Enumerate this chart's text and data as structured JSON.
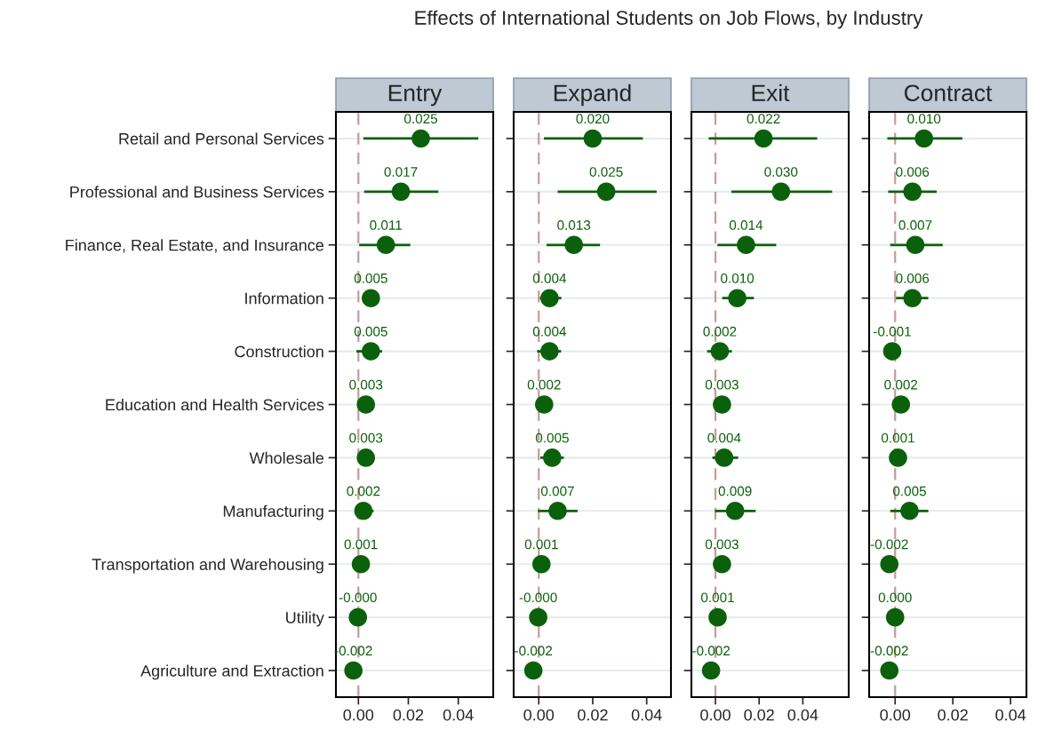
{
  "chart_data": [
    {
      "type": "scatter",
      "title": "Entry",
      "annotations": [
        "Effects of International Students on Job Flows, by Industry"
      ],
      "categories": [
        "Retail and Personal Services",
        "Professional and Business Services",
        "Finance, Real Estate, and Insurance",
        "Information",
        "Construction",
        "Education and Health Services",
        "Wholesale",
        "Manufacturing",
        "Transportation and Warehousing",
        "Utility",
        "Agriculture and Extraction"
      ],
      "series": [
        {
          "color": "#0b610b",
          "values": [
            0.025,
            0.017,
            0.011,
            0.005,
            0.005,
            0.003,
            0.003,
            0.002,
            0.001,
            -0.0002,
            -0.002
          ],
          "value_labels": [
            "0.025",
            "0.017",
            "0.011",
            "0.005",
            "0.005",
            "0.003",
            "0.003",
            "0.002",
            "0.001",
            "-0.000",
            "-0.002"
          ],
          "errors": [
            [
              0.002,
              0.048
            ],
            [
              0.0023,
              0.032
            ],
            [
              0.0003,
              0.0208
            ],
            [
              0.002,
              0.0083
            ],
            [
              -0.0008,
              0.0095
            ],
            null,
            null,
            [
              -0.0014,
              0.0061
            ],
            null,
            null,
            null
          ]
        }
      ],
      "orientation": "horizontal",
      "xlim": [
        -0.009,
        0.054
      ],
      "xticks": [
        {
          "value": 0,
          "label": "0.00"
        },
        {
          "value": 0.02,
          "label": "0.02"
        },
        {
          "value": 0.04,
          "label": "0.04"
        }
      ],
      "ref_lines": [
        {
          "axis": "x",
          "value": 0,
          "color": "#c99a9a",
          "line_style": "dashed"
        }
      ],
      "grid": "y",
      "marker": "circle",
      "legend": false
    },
    {
      "type": "scatter",
      "title": "Expand",
      "series": [
        {
          "color": "#0b610b",
          "values": [
            0.02,
            0.025,
            0.013,
            0.004,
            0.004,
            0.002,
            0.005,
            0.007,
            0.001,
            -0.0002,
            -0.002
          ],
          "value_labels": [
            "0.020",
            "0.025",
            "0.013",
            "0.004",
            "0.004",
            "0.002",
            "0.005",
            "0.007",
            "0.001",
            "-0.000",
            "-0.002"
          ],
          "errors": [
            [
              0.0019,
              0.0386
            ],
            [
              0.007,
              0.0437
            ],
            [
              0.0029,
              0.0227
            ],
            [
              0.0004,
              0.0084
            ],
            [
              -0.0006,
              0.0083
            ],
            null,
            [
              0.0006,
              0.0093
            ],
            [
              -0.0003,
              0.0144
            ],
            null,
            null,
            null
          ]
        }
      ],
      "orientation": "horizontal",
      "xlim": [
        -0.0093,
        0.049
      ],
      "xticks": [
        {
          "value": 0,
          "label": "0.00"
        },
        {
          "value": 0.02,
          "label": "0.02"
        },
        {
          "value": 0.04,
          "label": "0.04"
        }
      ],
      "ref_lines": [
        {
          "axis": "x",
          "value": 0,
          "color": "#c99a9a",
          "line_style": "dashed"
        }
      ],
      "grid": "y",
      "marker": "circle",
      "legend": false,
      "tick_labels": "x"
    },
    {
      "type": "scatter",
      "title": "Exit",
      "series": [
        {
          "color": "#0b610b",
          "values": [
            0.022,
            0.03,
            0.014,
            0.01,
            0.002,
            0.003,
            0.004,
            0.009,
            0.003,
            0.001,
            -0.002
          ],
          "value_labels": [
            "0.022",
            "0.030",
            "0.014",
            "0.010",
            "0.002",
            "0.003",
            "0.004",
            "0.009",
            "0.003",
            "0.001",
            "-0.002"
          ],
          "errors": [
            [
              -0.0031,
              0.0466
            ],
            [
              0.0073,
              0.0534
            ],
            [
              0.0009,
              0.0278
            ],
            [
              0.0031,
              0.0176
            ],
            [
              -0.0038,
              0.0075
            ],
            null,
            [
              -0.0014,
              0.0104
            ],
            [
              -0.0002,
              0.0184
            ],
            [
              0.003,
              0.0059
            ],
            null,
            null
          ]
        }
      ],
      "orientation": "horizontal",
      "xlim": [
        -0.011,
        0.061
      ],
      "xticks": [
        {
          "value": 0,
          "label": "0.00"
        },
        {
          "value": 0.02,
          "label": "0.02"
        },
        {
          "value": 0.04,
          "label": "0.04"
        }
      ],
      "ref_lines": [
        {
          "axis": "x",
          "value": 0,
          "color": "#c99a9a",
          "line_style": "dashed"
        }
      ],
      "grid": "y",
      "marker": "circle",
      "legend": false,
      "tick_labels": "x"
    },
    {
      "type": "scatter",
      "title": "Contract",
      "series": [
        {
          "color": "#0b610b",
          "values": [
            0.01,
            0.006,
            0.007,
            0.006,
            -0.001,
            0.002,
            0.001,
            0.005,
            -0.002,
            0.0,
            -0.002
          ],
          "value_labels": [
            "0.010",
            "0.006",
            "0.007",
            "0.006",
            "-0.001",
            "0.002",
            "0.001",
            "0.005",
            "-0.002",
            "0.000",
            "-0.002"
          ],
          "errors": [
            [
              -0.0027,
              0.0233
            ],
            [
              -0.0024,
              0.0144
            ],
            [
              -0.0017,
              0.0165
            ],
            [
              0.0003,
              0.0115
            ],
            null,
            null,
            null,
            [
              -0.0017,
              0.0115
            ],
            null,
            null,
            null
          ]
        }
      ],
      "orientation": "horizontal",
      "xlim": [
        -0.009,
        0.0455
      ],
      "xticks": [
        {
          "value": 0,
          "label": "0.00"
        },
        {
          "value": 0.02,
          "label": "0.02"
        },
        {
          "value": 0.04,
          "label": "0.04"
        }
      ],
      "ref_lines": [
        {
          "axis": "x",
          "value": 0,
          "color": "#c99a9a",
          "line_style": "dashed"
        }
      ],
      "grid": "y",
      "marker": "circle",
      "legend": false,
      "tick_labels": "x"
    }
  ]
}
